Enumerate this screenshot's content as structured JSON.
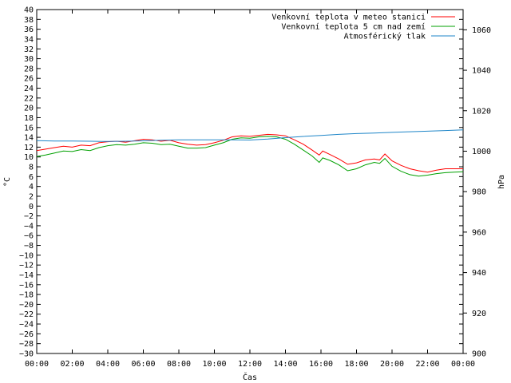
{
  "chart_data": {
    "type": "line",
    "title": "",
    "xlabel": "Čas",
    "ylabel": "°C",
    "y2label": "hPa",
    "x_ticks": [
      "00:00",
      "02:00",
      "04:00",
      "06:00",
      "08:00",
      "10:00",
      "12:00",
      "14:00",
      "16:00",
      "18:00",
      "20:00",
      "22:00",
      "00:00"
    ],
    "xlim_hours": [
      0,
      24
    ],
    "ylim": [
      -30,
      40
    ],
    "y_tick_step": 2,
    "y2lim": [
      900,
      1070
    ],
    "y2_ticks": [
      900,
      920,
      940,
      960,
      980,
      1000,
      1020,
      1040,
      1060
    ],
    "grid": false,
    "legend": "top-right",
    "series": [
      {
        "name": "Venkovní teplota v meteo stanici",
        "axis": "left",
        "color": "#ff0000",
        "x": [
          0,
          0.5,
          1,
          1.5,
          2,
          2.5,
          3,
          3.5,
          4,
          4.5,
          5,
          5.5,
          6,
          6.5,
          7,
          7.5,
          8,
          8.5,
          9,
          9.5,
          10,
          10.5,
          11,
          11.5,
          12,
          12.5,
          13,
          13.5,
          14,
          14.5,
          15,
          15.5,
          15.9,
          16.1,
          16.5,
          17,
          17.5,
          18,
          18.5,
          19,
          19.3,
          19.6,
          20,
          20.5,
          21,
          21.5,
          22,
          22.5,
          23,
          23.5,
          24
        ],
        "values": [
          11.3,
          11.6,
          11.9,
          12.2,
          12.0,
          12.4,
          12.3,
          12.9,
          13.1,
          13.2,
          13.0,
          13.3,
          13.6,
          13.5,
          13.2,
          13.4,
          12.9,
          12.6,
          12.4,
          12.5,
          12.9,
          13.4,
          14.1,
          14.3,
          14.2,
          14.4,
          14.6,
          14.5,
          14.3,
          13.5,
          12.6,
          11.4,
          10.4,
          11.2,
          10.5,
          9.6,
          8.5,
          8.8,
          9.4,
          9.6,
          9.4,
          10.6,
          9.2,
          8.3,
          7.6,
          7.2,
          6.9,
          7.3,
          7.6,
          7.6,
          7.6
        ]
      },
      {
        "name": "Venkovní teplota 5 cm nad zemí",
        "axis": "left",
        "color": "#00a000",
        "x": [
          0,
          0.5,
          1,
          1.5,
          2,
          2.5,
          3,
          3.5,
          4,
          4.5,
          5,
          5.5,
          6,
          6.5,
          7,
          7.5,
          8,
          8.5,
          9,
          9.5,
          10,
          10.5,
          11,
          11.5,
          12,
          12.5,
          13,
          13.5,
          14,
          14.5,
          15,
          15.5,
          15.9,
          16.1,
          16.5,
          17,
          17.5,
          18,
          18.5,
          19,
          19.3,
          19.6,
          20,
          20.5,
          21,
          21.5,
          22,
          22.5,
          23,
          23.5,
          24
        ],
        "values": [
          10.1,
          10.4,
          10.8,
          11.2,
          11.1,
          11.5,
          11.3,
          11.9,
          12.3,
          12.5,
          12.4,
          12.6,
          12.9,
          12.8,
          12.5,
          12.6,
          12.2,
          11.8,
          11.8,
          11.9,
          12.4,
          12.9,
          13.6,
          13.9,
          13.8,
          14.1,
          14.2,
          14.1,
          13.6,
          12.6,
          11.4,
          10.2,
          8.9,
          9.8,
          9.3,
          8.4,
          7.2,
          7.6,
          8.4,
          8.9,
          8.7,
          9.7,
          8.1,
          7.1,
          6.4,
          6.1,
          6.3,
          6.6,
          6.8,
          6.9,
          7.0
        ]
      },
      {
        "name": "Atmosférický tlak",
        "axis": "right",
        "color": "#1f86c8",
        "x": [
          0,
          1,
          2,
          3,
          4,
          5,
          6,
          7,
          8,
          9,
          10,
          11,
          12,
          13,
          14,
          15,
          16,
          17,
          18,
          19,
          20,
          21,
          22,
          23,
          24
        ],
        "values": [
          1005.2,
          1005.0,
          1005.0,
          1004.9,
          1004.8,
          1004.9,
          1005.1,
          1005.4,
          1005.6,
          1005.6,
          1005.6,
          1005.6,
          1005.5,
          1006.0,
          1006.7,
          1007.3,
          1007.8,
          1008.3,
          1008.7,
          1009.0,
          1009.3,
          1009.6,
          1009.9,
          1010.2,
          1010.5
        ]
      }
    ]
  }
}
